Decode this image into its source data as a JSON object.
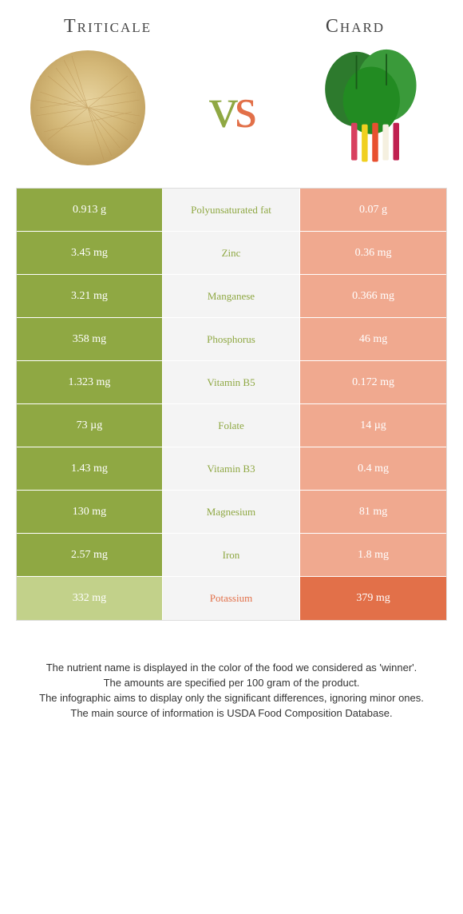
{
  "leftFood": {
    "title": "Triticale"
  },
  "rightFood": {
    "title": "Chard"
  },
  "colors": {
    "leftWin": "#8fa843",
    "leftLose": "#c2d18a",
    "rightWin": "#e27049",
    "rightLose": "#f0a98f",
    "midBg": "#f4f4f4"
  },
  "rows": [
    {
      "nutrient": "Polyunsaturated fat",
      "left": "0.913 g",
      "right": "0.07 g",
      "winner": "left"
    },
    {
      "nutrient": "Zinc",
      "left": "3.45 mg",
      "right": "0.36 mg",
      "winner": "left"
    },
    {
      "nutrient": "Manganese",
      "left": "3.21 mg",
      "right": "0.366 mg",
      "winner": "left"
    },
    {
      "nutrient": "Phosphorus",
      "left": "358 mg",
      "right": "46 mg",
      "winner": "left"
    },
    {
      "nutrient": "Vitamin B5",
      "left": "1.323 mg",
      "right": "0.172 mg",
      "winner": "left"
    },
    {
      "nutrient": "Folate",
      "left": "73 µg",
      "right": "14 µg",
      "winner": "left"
    },
    {
      "nutrient": "Vitamin B3",
      "left": "1.43 mg",
      "right": "0.4 mg",
      "winner": "left"
    },
    {
      "nutrient": "Magnesium",
      "left": "130 mg",
      "right": "81 mg",
      "winner": "left"
    },
    {
      "nutrient": "Iron",
      "left": "2.57 mg",
      "right": "1.8 mg",
      "winner": "left"
    },
    {
      "nutrient": "Potassium",
      "left": "332 mg",
      "right": "379 mg",
      "winner": "right"
    }
  ],
  "footnotes": [
    "The nutrient name is displayed in the color of the food we considered as 'winner'.",
    "The amounts are specified per 100 gram of the product.",
    "The infographic aims to display only the significant differences, ignoring minor ones.",
    "The main source of information is USDA Food Composition Database."
  ]
}
